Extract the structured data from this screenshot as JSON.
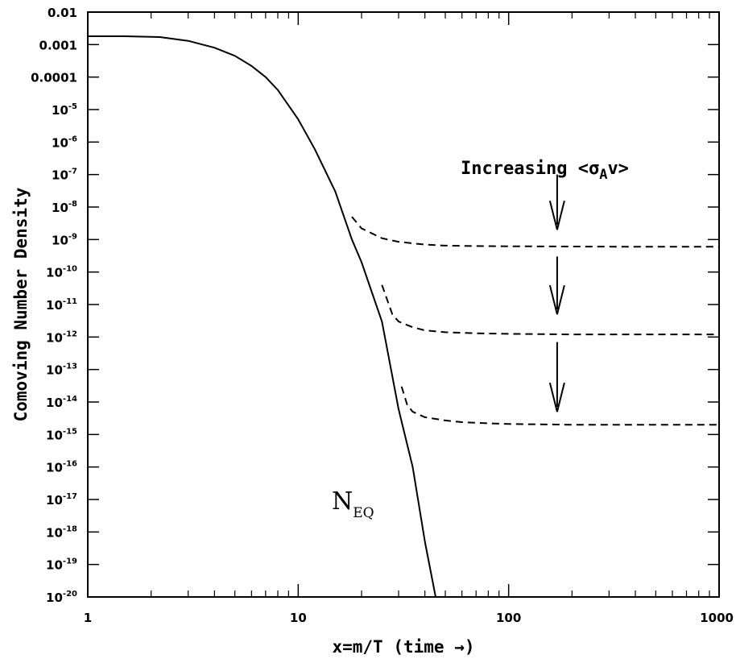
{
  "chart_data": {
    "type": "line",
    "title": "",
    "xlabel": "x=m/T (time →)",
    "ylabel": "Comoving Number Density",
    "x_scale": "log",
    "y_scale": "log",
    "xlim": [
      1,
      1000
    ],
    "ylim": [
      1e-20,
      0.01
    ],
    "x_ticks": [
      {
        "value": 1,
        "label": "1"
      },
      {
        "value": 10,
        "label": "10"
      },
      {
        "value": 100,
        "label": "100"
      },
      {
        "value": 1000,
        "label": "1000"
      }
    ],
    "y_ticks": [
      {
        "value": 0.01,
        "label": "0.01"
      },
      {
        "value": 0.001,
        "label": "0.001"
      },
      {
        "value": 0.0001,
        "label": "0.0001"
      },
      {
        "value": 1e-05,
        "base": "10",
        "exp": "-5"
      },
      {
        "value": 1e-06,
        "base": "10",
        "exp": "-6"
      },
      {
        "value": 1e-07,
        "base": "10",
        "exp": "-7"
      },
      {
        "value": 1e-08,
        "base": "10",
        "exp": "-8"
      },
      {
        "value": 1e-09,
        "base": "10",
        "exp": "-9"
      },
      {
        "value": 1e-10,
        "base": "10",
        "exp": "-10"
      },
      {
        "value": 1e-11,
        "base": "10",
        "exp": "-11"
      },
      {
        "value": 1e-12,
        "base": "10",
        "exp": "-12"
      },
      {
        "value": 1e-13,
        "base": "10",
        "exp": "-13"
      },
      {
        "value": 1e-14,
        "base": "10",
        "exp": "-14"
      },
      {
        "value": 1e-15,
        "base": "10",
        "exp": "-15"
      },
      {
        "value": 1e-16,
        "base": "10",
        "exp": "-16"
      },
      {
        "value": 1e-17,
        "base": "10",
        "exp": "-17"
      },
      {
        "value": 1e-18,
        "base": "10",
        "exp": "-18"
      },
      {
        "value": 1e-19,
        "base": "10",
        "exp": "-19"
      },
      {
        "value": 1e-20,
        "base": "10",
        "exp": "-20"
      }
    ],
    "series": [
      {
        "style": "solid",
        "x": [
          1,
          1.5,
          2.2,
          3,
          4,
          5,
          6,
          7,
          8,
          10,
          12,
          15,
          18,
          20,
          25,
          30,
          35,
          40,
          45
        ],
        "y": [
          0.0018,
          0.0018,
          0.0017,
          0.0013,
          0.0008,
          0.00045,
          0.00022,
          0.0001,
          4e-05,
          5e-06,
          6e-07,
          3e-08,
          1e-09,
          2e-10,
          3e-12,
          6e-15,
          1e-16,
          5e-19,
          1e-20
        ]
      },
      {
        "style": "dashed",
        "x": [
          18,
          20,
          25,
          30,
          40,
          50,
          70,
          100,
          200,
          400,
          1000
        ],
        "y": [
          5e-09,
          2.2e-09,
          1.1e-09,
          8.5e-10,
          7e-10,
          6.5e-10,
          6.3e-10,
          6.2e-10,
          6.1e-10,
          6e-10,
          6e-10
        ]
      },
      {
        "style": "dashed",
        "x": [
          25,
          28,
          30,
          35,
          40,
          50,
          70,
          100,
          200,
          400,
          1000
        ],
        "y": [
          4e-11,
          5e-12,
          3e-12,
          2e-12,
          1.6e-12,
          1.4e-12,
          1.3e-12,
          1.25e-12,
          1.2e-12,
          1.2e-12,
          1.2e-12
        ]
      },
      {
        "style": "dashed",
        "x": [
          31,
          33,
          35,
          40,
          50,
          60,
          80,
          100,
          200,
          400,
          1000
        ],
        "y": [
          3e-14,
          8e-15,
          5e-15,
          3.4e-15,
          2.7e-15,
          2.4e-15,
          2.2e-15,
          2.1e-15,
          2e-15,
          2e-15,
          2e-15
        ]
      }
    ],
    "annotations": {
      "arrow_label": "Increasing <σ",
      "arrow_label_sub": "A",
      "arrow_label_end": "v>",
      "neq_main": "N",
      "neq_sub": "EQ",
      "arrows": [
        {
          "x": 170,
          "y_from": 1e-07,
          "y_to": 2e-09
        },
        {
          "x": 170,
          "y_from": 3e-10,
          "y_to": 5e-12
        },
        {
          "x": 170,
          "y_from": 7e-13,
          "y_to": 5e-15
        }
      ]
    },
    "grid": false,
    "legend": "none"
  }
}
